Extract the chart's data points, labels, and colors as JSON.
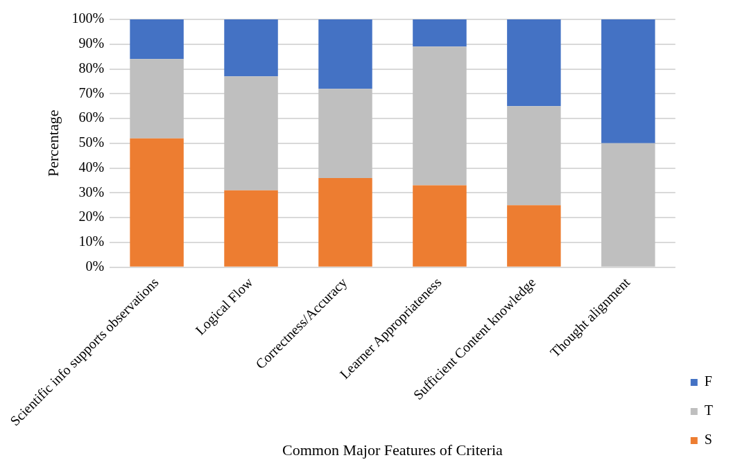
{
  "chart_data": {
    "type": "bar",
    "stacked": true,
    "xlabel": "Common Major Features of Criteria",
    "ylabel": "Percentage",
    "categories": [
      "Scientific info supports observations",
      "Logical Flow",
      "Correctness/Accuracy",
      "Learner Appropriateness",
      "Sufficient Content knowledge",
      "Thought alignment"
    ],
    "series": [
      {
        "name": "S",
        "color": "#ed7d31",
        "values": [
          52,
          31,
          36,
          33,
          25,
          0
        ]
      },
      {
        "name": "T",
        "color": "#bfbfbf",
        "values": [
          32,
          46,
          36,
          56,
          40,
          50
        ]
      },
      {
        "name": "F",
        "color": "#4472c4",
        "values": [
          16,
          23,
          28,
          11,
          35,
          50
        ]
      }
    ],
    "ylim": [
      0,
      100
    ],
    "yticks": [
      {
        "value": 0,
        "label": "0%"
      },
      {
        "value": 10,
        "label": "10%"
      },
      {
        "value": 20,
        "label": "20%"
      },
      {
        "value": 30,
        "label": "30%"
      },
      {
        "value": 40,
        "label": "40%"
      },
      {
        "value": 50,
        "label": "50%"
      },
      {
        "value": 60,
        "label": "60%"
      },
      {
        "value": 70,
        "label": "70%"
      },
      {
        "value": 80,
        "label": "80%"
      },
      {
        "value": 90,
        "label": "90%"
      },
      {
        "value": 100,
        "label": "100%"
      }
    ],
    "grid": "y",
    "legend": "right"
  }
}
